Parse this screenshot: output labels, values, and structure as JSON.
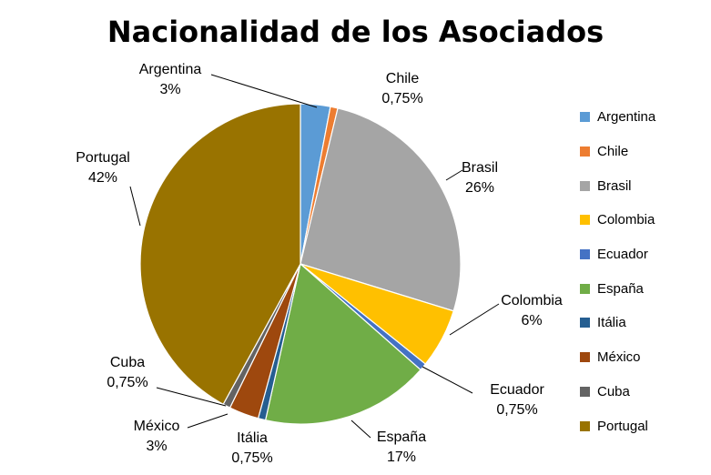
{
  "chart_data": {
    "type": "pie",
    "title": "Nacionalidad de los Asociados",
    "legend_position": "right",
    "slices": [
      {
        "name": "Argentina",
        "value": 3,
        "value_label": "3%",
        "color": "#5B9BD5"
      },
      {
        "name": "Chile",
        "value": 0.75,
        "value_label": "0,75%",
        "color": "#ED7D31"
      },
      {
        "name": "Brasil",
        "value": 26,
        "value_label": "26%",
        "color": "#A5A5A5"
      },
      {
        "name": "Colombia",
        "value": 6,
        "value_label": "6%",
        "color": "#FFC000"
      },
      {
        "name": "Ecuador",
        "value": 0.75,
        "value_label": "0,75%",
        "color": "#4472C4"
      },
      {
        "name": "España",
        "value": 17,
        "value_label": "17%",
        "color": "#70AD47"
      },
      {
        "name": "Itália",
        "value": 0.75,
        "value_label": "0,75%",
        "color": "#255E91"
      },
      {
        "name": "México",
        "value": 3,
        "value_label": "3%",
        "color": "#9E480E"
      },
      {
        "name": "Cuba",
        "value": 0.75,
        "value_label": "0,75%",
        "color": "#636363"
      },
      {
        "name": "Portugal",
        "value": 42,
        "value_label": "42%",
        "color": "#997300"
      }
    ]
  }
}
